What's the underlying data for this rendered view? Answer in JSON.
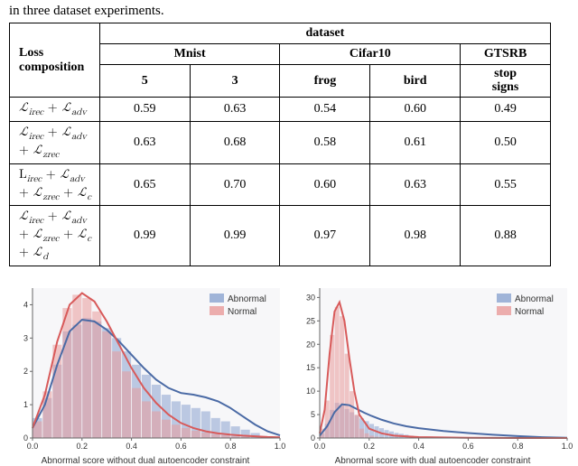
{
  "caption": "in three dataset experiments.",
  "table": {
    "header_top": "dataset",
    "header_mnist": "Mnist",
    "header_cifar": "Cifar10",
    "header_gtsrb": "GTSRB",
    "header_loss": "Loss composition",
    "sub5": "5",
    "sub3": "3",
    "subfrog": "frog",
    "subbird": "bird",
    "substop": "stop\nsigns",
    "rows": [
      {
        "label_html": "ℒ<sub>irec</sub> + ℒ<sub>adv</sub>",
        "v": [
          "0.59",
          "0.63",
          "0.54",
          "0.60",
          "0.49"
        ]
      },
      {
        "label_html": "ℒ<sub>irec</sub> + ℒ<sub>adv</sub> + ℒ<sub>zrec</sub>",
        "v": [
          "0.63",
          "0.68",
          "0.58",
          "0.61",
          "0.50"
        ]
      },
      {
        "label_html": "L<sub>irec</sub> + ℒ<sub>adv</sub> + ℒ<sub>zrec</sub> + ℒ<sub>c</sub>",
        "v": [
          "0.65",
          "0.70",
          "0.60",
          "0.63",
          "0.55"
        ]
      },
      {
        "label_html": "ℒ<sub>irec</sub> + ℒ<sub>adv</sub> + ℒ<sub>zrec</sub> + ℒ<sub>c</sub> + ℒ<sub>d</sub>",
        "v": [
          "0.99",
          "0.99",
          "0.97",
          "0.98",
          "0.88"
        ]
      }
    ]
  },
  "charts": {
    "colors": {
      "abnormal_fill": "#8aa3cf",
      "abnormal_line": "#4a6aa5",
      "normal_fill": "#e99a9a",
      "normal_line": "#d85a5a",
      "axis": "#666666",
      "bg": "#f7f7f9"
    },
    "legend": {
      "abnormal": "Abnormal",
      "normal": "Normal"
    },
    "left": {
      "xlabel": "Abnormal score without dual autoencoder constraint",
      "ylim": [
        0,
        4.5
      ],
      "yticks": [
        0,
        1,
        2,
        3,
        4
      ],
      "xlim": [
        0.0,
        1.0
      ],
      "xticks": [
        0.0,
        0.2,
        0.4,
        0.6,
        0.8,
        1.0
      ],
      "hist_bins_x": [
        0.02,
        0.06,
        0.1,
        0.14,
        0.18,
        0.22,
        0.26,
        0.3,
        0.34,
        0.38,
        0.42,
        0.46,
        0.5,
        0.54,
        0.58,
        0.62,
        0.66,
        0.7,
        0.74,
        0.78,
        0.82,
        0.86,
        0.9
      ],
      "hist_abnormal": [
        0.6,
        1.2,
        2.2,
        3.2,
        3.4,
        3.6,
        3.5,
        3.3,
        3.0,
        2.6,
        2.2,
        1.9,
        1.6,
        1.3,
        1.1,
        1.0,
        0.9,
        0.8,
        0.6,
        0.5,
        0.35,
        0.25,
        0.15
      ],
      "hist_normal": [
        0.5,
        1.4,
        2.8,
        3.9,
        4.3,
        4.2,
        3.8,
        3.2,
        2.6,
        2.0,
        1.5,
        1.1,
        0.8,
        0.55,
        0.4,
        0.3,
        0.22,
        0.16,
        0.12,
        0.08,
        0.05,
        0.03,
        0.02
      ],
      "kde_abnormal_x": [
        0.0,
        0.05,
        0.1,
        0.15,
        0.2,
        0.25,
        0.3,
        0.35,
        0.4,
        0.45,
        0.5,
        0.55,
        0.6,
        0.65,
        0.7,
        0.75,
        0.8,
        0.85,
        0.9,
        0.95,
        1.0
      ],
      "kde_abnormal_y": [
        0.3,
        1.0,
        2.2,
        3.2,
        3.55,
        3.5,
        3.25,
        2.9,
        2.5,
        2.1,
        1.75,
        1.5,
        1.35,
        1.3,
        1.22,
        1.1,
        0.9,
        0.65,
        0.4,
        0.2,
        0.08
      ],
      "kde_normal_x": [
        0.0,
        0.05,
        0.1,
        0.15,
        0.2,
        0.25,
        0.3,
        0.35,
        0.4,
        0.45,
        0.5,
        0.55,
        0.6,
        0.65,
        0.7,
        0.75,
        0.8,
        0.85,
        0.9,
        0.95,
        1.0
      ],
      "kde_normal_y": [
        0.3,
        1.3,
        2.9,
        4.0,
        4.35,
        4.1,
        3.5,
        2.8,
        2.1,
        1.5,
        1.05,
        0.7,
        0.45,
        0.3,
        0.2,
        0.14,
        0.1,
        0.07,
        0.05,
        0.03,
        0.02
      ]
    },
    "right": {
      "xlabel": "Abnormal score with dual autoencoder constraint",
      "ylim": [
        0,
        32
      ],
      "yticks": [
        0,
        5,
        10,
        15,
        20,
        25,
        30
      ],
      "xlim": [
        0.0,
        1.0
      ],
      "xticks": [
        0.0,
        0.2,
        0.4,
        0.6,
        0.8,
        1.0
      ],
      "hist_bins_x": [
        0.01,
        0.03,
        0.05,
        0.07,
        0.09,
        0.11,
        0.13,
        0.15,
        0.17,
        0.19,
        0.21,
        0.23,
        0.25,
        0.27,
        0.29,
        0.31,
        0.33,
        0.35,
        0.37,
        0.45,
        0.55
      ],
      "hist_abnormal": [
        1.0,
        3.0,
        6.0,
        7.5,
        7.0,
        6.2,
        5.5,
        4.8,
        4.2,
        3.6,
        3.0,
        2.5,
        2.1,
        1.7,
        1.4,
        1.1,
        0.9,
        0.7,
        0.5,
        0.3,
        0.1
      ],
      "hist_normal": [
        2.0,
        8.0,
        22.0,
        28.0,
        26.0,
        18.0,
        10.0,
        5.0,
        2.0,
        1.0,
        0.5,
        0.3,
        0.2,
        0.12,
        0.08,
        0.05,
        0.03,
        0.02,
        0.01,
        0.005,
        0.002
      ],
      "kde_abnormal_x": [
        0.0,
        0.03,
        0.06,
        0.09,
        0.12,
        0.15,
        0.18,
        0.21,
        0.25,
        0.3,
        0.35,
        0.4,
        0.5,
        0.6,
        0.7,
        0.8,
        0.9,
        1.0
      ],
      "kde_abnormal_y": [
        0.5,
        2.5,
        5.5,
        7.2,
        7.0,
        6.2,
        5.4,
        4.7,
        3.9,
        3.1,
        2.5,
        2.1,
        1.5,
        1.05,
        0.7,
        0.4,
        0.18,
        0.05
      ],
      "kde_normal_x": [
        0.0,
        0.02,
        0.04,
        0.06,
        0.08,
        0.1,
        0.12,
        0.14,
        0.16,
        0.2,
        0.25,
        0.3,
        0.4,
        0.6,
        0.8,
        1.0
      ],
      "kde_normal_y": [
        1.0,
        6.0,
        18.0,
        27.0,
        29.0,
        25.0,
        17.0,
        10.0,
        5.0,
        2.0,
        1.0,
        0.5,
        0.2,
        0.05,
        0.01,
        0.005
      ]
    }
  }
}
